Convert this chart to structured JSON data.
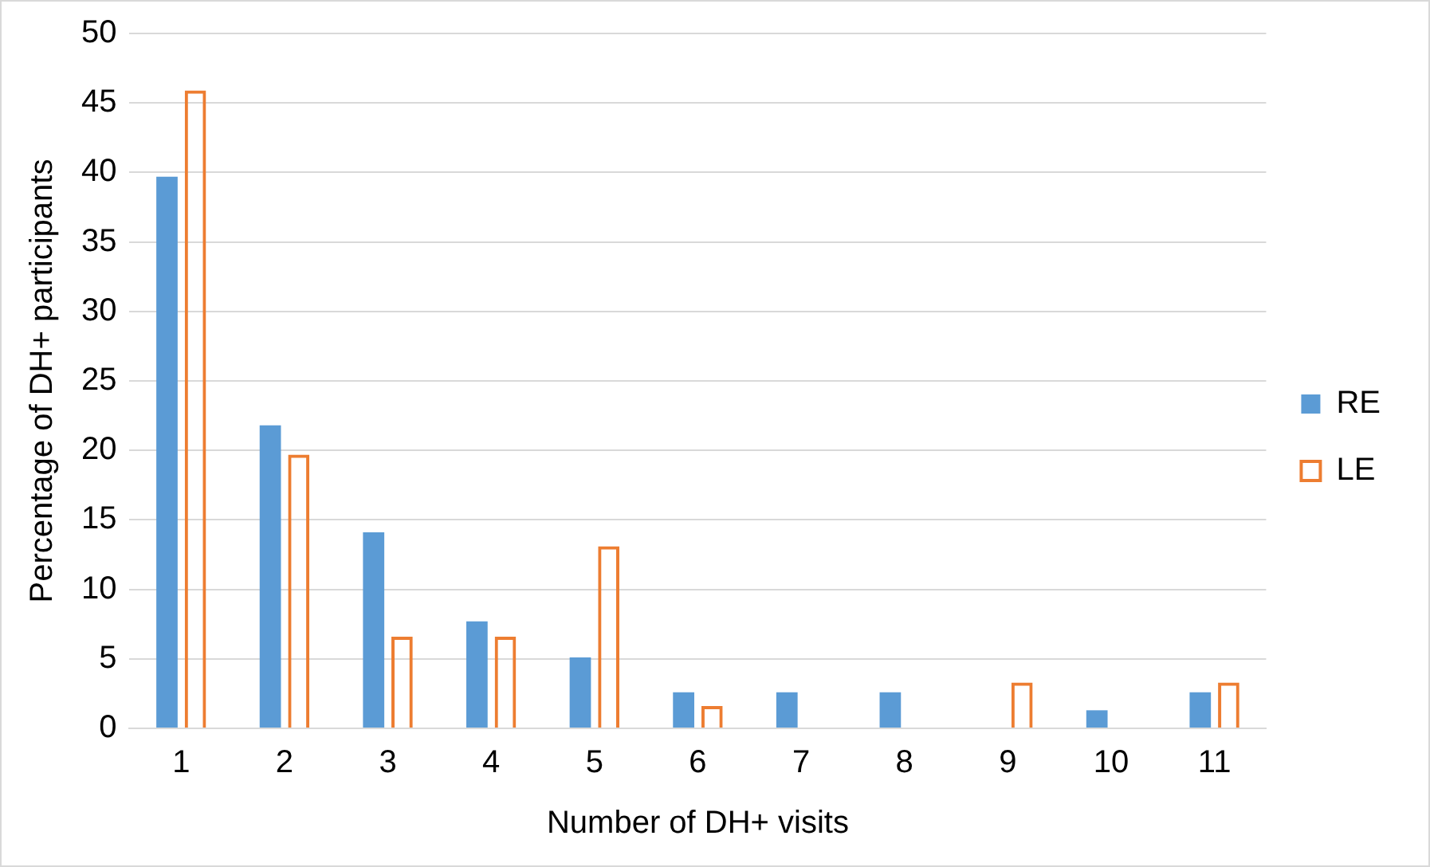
{
  "chart_data": {
    "type": "bar",
    "xlabel": "Number of DH+ visits",
    "ylabel": "Percentage of DH+ participants",
    "categories": [
      "1",
      "2",
      "3",
      "4",
      "5",
      "6",
      "7",
      "8",
      "9",
      "10",
      "11"
    ],
    "series": [
      {
        "name": "RE",
        "color": "#5b9bd5",
        "values": [
          39.7,
          21.8,
          14.1,
          7.7,
          5.1,
          2.6,
          2.6,
          2.6,
          0,
          1.3,
          2.6
        ]
      },
      {
        "name": "LE",
        "color": "#ed7d31",
        "values": [
          45.9,
          19.7,
          6.6,
          6.6,
          13.1,
          1.6,
          0,
          0,
          3.3,
          0,
          3.3
        ]
      }
    ],
    "ylim": [
      0,
      50
    ],
    "yticks": [
      0,
      5,
      10,
      15,
      20,
      25,
      30,
      35,
      40,
      45,
      50
    ],
    "grid": "y",
    "legend": "right"
  }
}
